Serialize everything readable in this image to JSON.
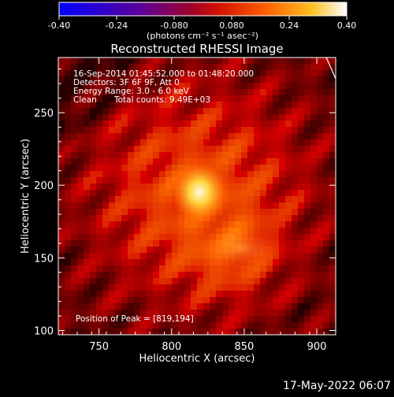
{
  "colorbar": {
    "min_label": "-0.40",
    "ticks": [
      "-0.24",
      "-0.080",
      "0.080",
      "0.24"
    ],
    "max_label": "0.40",
    "range": [
      -0.4,
      0.4
    ],
    "units_label": "(photons cm⁻² s⁻¹ asec⁻²)"
  },
  "chart_data": {
    "type": "heatmap",
    "title": "Reconstructed RHESSI Image",
    "xlabel": "Heliocentric X (arcsec)",
    "ylabel": "Heliocentric Y (arcsec)",
    "xlim": [
      722,
      913
    ],
    "ylim": [
      97,
      288
    ],
    "x_ticks": [
      750,
      800,
      850,
      900
    ],
    "y_ticks": [
      100,
      150,
      200,
      250
    ],
    "colormap": "red-temperature (blue-purple-red-orange-yellow-white)",
    "peak": {
      "x": 819,
      "y": 194
    },
    "secondary_source": {
      "x": 840,
      "y": 152
    },
    "annotations": {
      "time_range": "16-Sep-2014 01:45:52.000 to 01:48:20.000",
      "detectors": "Detectors: 3F 6F 9F, Att 0",
      "energy": "Energy Range: 3.0 - 6.0 keV",
      "method": "Clean",
      "total_counts": "Total counts: 9.49E+03",
      "peak_text": "Position of Peak = [819,194]"
    }
  },
  "footer": {
    "timestamp": "17-May-2022 06:07"
  }
}
